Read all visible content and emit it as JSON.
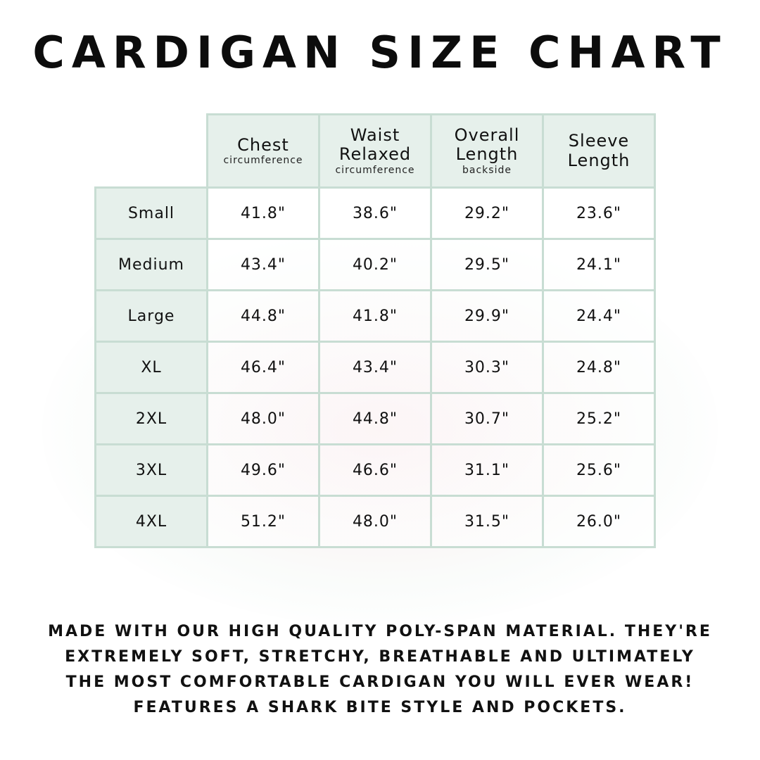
{
  "title": "CARDIGAN SIZE CHART",
  "headers": [
    {
      "main": "Chest",
      "main2": "",
      "sub": "circumference"
    },
    {
      "main": "Waist",
      "main2": "Relaxed",
      "sub": "circumference"
    },
    {
      "main": "Overall",
      "main2": "Length",
      "sub": "backside"
    },
    {
      "main": "Sleeve",
      "main2": "Length",
      "sub": ""
    }
  ],
  "rows": [
    {
      "size": "Small",
      "values": [
        "41.8\"",
        "38.6\"",
        "29.2\"",
        "23.6\""
      ]
    },
    {
      "size": "Medium",
      "values": [
        "43.4\"",
        "40.2\"",
        "29.5\"",
        "24.1\""
      ]
    },
    {
      "size": "Large",
      "values": [
        "44.8\"",
        "41.8\"",
        "29.9\"",
        "24.4\""
      ]
    },
    {
      "size": "XL",
      "values": [
        "46.4\"",
        "43.4\"",
        "30.3\"",
        "24.8\""
      ]
    },
    {
      "size": "2XL",
      "values": [
        "48.0\"",
        "44.8\"",
        "30.7\"",
        "25.2\""
      ]
    },
    {
      "size": "3XL",
      "values": [
        "49.6\"",
        "46.6\"",
        "31.1\"",
        "25.6\""
      ]
    },
    {
      "size": "4XL",
      "values": [
        "51.2\"",
        "48.0\"",
        "31.5\"",
        "26.0\""
      ]
    }
  ],
  "footer": [
    "Made with our high quality poly-span material. They're",
    "extremely soft, stretchy, breathable and ultimately",
    "the most comfortable cardigan you will ever wear!",
    "Features a shark bite style and pockets."
  ],
  "colors": {
    "header_bg": "#e6f0eb",
    "border": "#c8ddd3"
  }
}
